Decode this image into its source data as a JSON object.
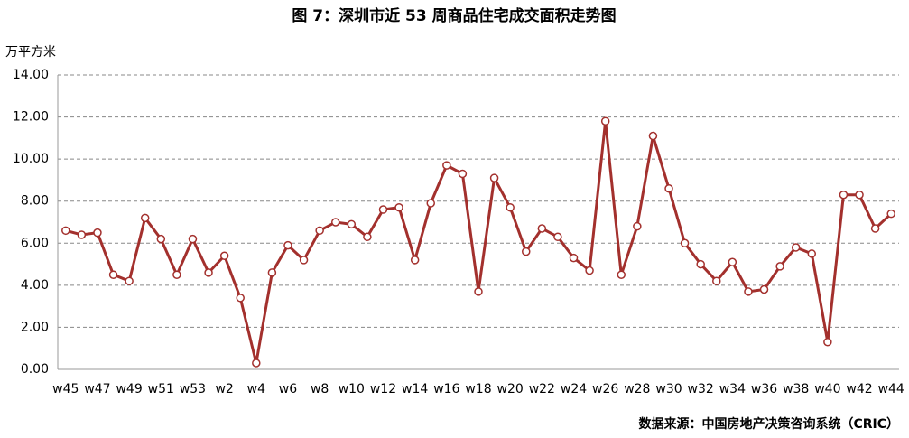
{
  "chart_data": {
    "type": "line",
    "title": "图 7：深圳市近 53 周商品住宅成交面积走势图",
    "y_label": "万平方米",
    "source": "数据来源：中国房地产决策咨询系统（CRIC）",
    "categories": [
      "w45",
      null,
      "w47",
      null,
      "w49",
      null,
      "w51",
      null,
      "w53",
      null,
      "w2",
      null,
      "w4",
      null,
      "w6",
      null,
      "w8",
      null,
      "w10",
      null,
      "w12",
      null,
      "w14",
      null,
      "w16",
      null,
      "w18",
      null,
      "w20",
      null,
      "w22",
      null,
      "w24",
      null,
      "w26",
      null,
      "w28",
      null,
      "w30",
      null,
      "w32",
      null,
      "w34",
      null,
      "w36",
      null,
      "w38",
      null,
      "w40",
      null,
      "w42",
      null,
      "w44"
    ],
    "series": [
      {
        "name": "成交面积",
        "color": "#a3302d",
        "values": [
          6.6,
          6.4,
          6.5,
          4.5,
          4.2,
          7.2,
          6.2,
          4.5,
          6.2,
          4.6,
          5.4,
          3.4,
          0.3,
          4.6,
          5.9,
          5.2,
          6.6,
          7.0,
          6.9,
          6.3,
          7.6,
          7.7,
          5.2,
          7.9,
          9.7,
          9.3,
          3.7,
          9.1,
          7.7,
          5.6,
          6.7,
          6.3,
          5.3,
          4.7,
          11.8,
          4.5,
          6.8,
          11.1,
          8.6,
          6.0,
          5.0,
          4.2,
          5.1,
          3.7,
          3.8,
          4.9,
          5.8,
          5.5,
          1.3,
          8.3,
          8.3,
          6.7,
          7.4
        ]
      }
    ],
    "ylim": [
      0,
      14
    ],
    "yticks": [
      {
        "value": 0,
        "label": "0.00"
      },
      {
        "value": 2,
        "label": "2.00"
      },
      {
        "value": 4,
        "label": "4.00"
      },
      {
        "value": 6,
        "label": "6.00"
      },
      {
        "value": 8,
        "label": "8.00"
      },
      {
        "value": 10,
        "label": "10.00"
      },
      {
        "value": 12,
        "label": "12.00"
      },
      {
        "value": 14,
        "label": "14.00"
      }
    ],
    "grid": true
  }
}
